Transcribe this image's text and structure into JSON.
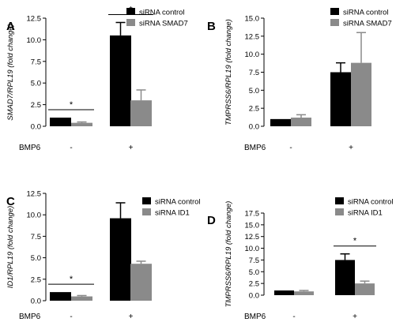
{
  "colors": {
    "control": "#000000",
    "treated": "#8a8a8a",
    "axis": "#000000"
  },
  "chart_data": [
    {
      "panel_label": "A",
      "type": "bar",
      "ylabel": "SMAD7/RPL19 (fold change)",
      "xlabel": "BMP6",
      "categories": [
        "-",
        "+"
      ],
      "ylim": [
        0,
        12.5
      ],
      "yticks": [
        "0.0",
        "2.5",
        "5.0",
        "7.5",
        "10.0",
        "12.5"
      ],
      "series": [
        {
          "name": "siRNA control",
          "values": [
            1.0,
            10.5
          ],
          "errors": [
            0,
            1.5
          ]
        },
        {
          "name": "siRNA SMAD7",
          "values": [
            0.4,
            3.0
          ],
          "errors": [
            0.1,
            1.2
          ]
        }
      ],
      "legend": "top-right",
      "significance": [
        {
          "category": 0,
          "label": "*"
        },
        {
          "category": 1,
          "label": "*"
        }
      ]
    },
    {
      "panel_label": "B",
      "type": "bar",
      "ylabel": "TMPRSS6/RPL19 (fold change)",
      "xlabel": "BMP6",
      "categories": [
        "-",
        "+"
      ],
      "ylim": [
        0,
        15.0
      ],
      "yticks": [
        "0.0",
        "2.5",
        "5.0",
        "7.5",
        "10.0",
        "12.5",
        "15.0"
      ],
      "series": [
        {
          "name": "siRNA control",
          "values": [
            1.0,
            7.5
          ],
          "errors": [
            0,
            1.3
          ]
        },
        {
          "name": "siRNA SMAD7",
          "values": [
            1.2,
            8.8
          ],
          "errors": [
            0.4,
            4.2
          ]
        }
      ],
      "legend": "top-right",
      "significance": []
    },
    {
      "panel_label": "C",
      "type": "bar",
      "ylabel": "ID1/RPL19 (fold change)",
      "xlabel": "BMP6",
      "categories": [
        "-",
        "+"
      ],
      "ylim": [
        0,
        12.5
      ],
      "yticks": [
        "0.0",
        "2.5",
        "5.0",
        "7.5",
        "10.0",
        "12.5"
      ],
      "series": [
        {
          "name": "siRNA control",
          "values": [
            1.0,
            9.6
          ],
          "errors": [
            0,
            1.8
          ]
        },
        {
          "name": "siRNA ID1",
          "values": [
            0.5,
            4.3
          ],
          "errors": [
            0.1,
            0.3
          ]
        }
      ],
      "legend": "top-right",
      "significance": [
        {
          "category": 0,
          "label": "*"
        }
      ]
    },
    {
      "panel_label": "D",
      "type": "bar",
      "ylabel": "TMPRSS6/RPL19 (fold change)",
      "xlabel": "BMP6",
      "categories": [
        "-",
        "+"
      ],
      "ylim": [
        0,
        17.5
      ],
      "yticks": [
        "0.0",
        "2.5",
        "5.0",
        "7.5",
        "10.0",
        "12.5",
        "15.0",
        "17.5"
      ],
      "series": [
        {
          "name": "siRNA control",
          "values": [
            1.0,
            7.5
          ],
          "errors": [
            0,
            1.3
          ]
        },
        {
          "name": "siRNA ID1",
          "values": [
            0.8,
            2.5
          ],
          "errors": [
            0.2,
            0.5
          ]
        }
      ],
      "legend": "top-right",
      "significance": [
        {
          "category": 1,
          "label": "*"
        }
      ]
    }
  ]
}
